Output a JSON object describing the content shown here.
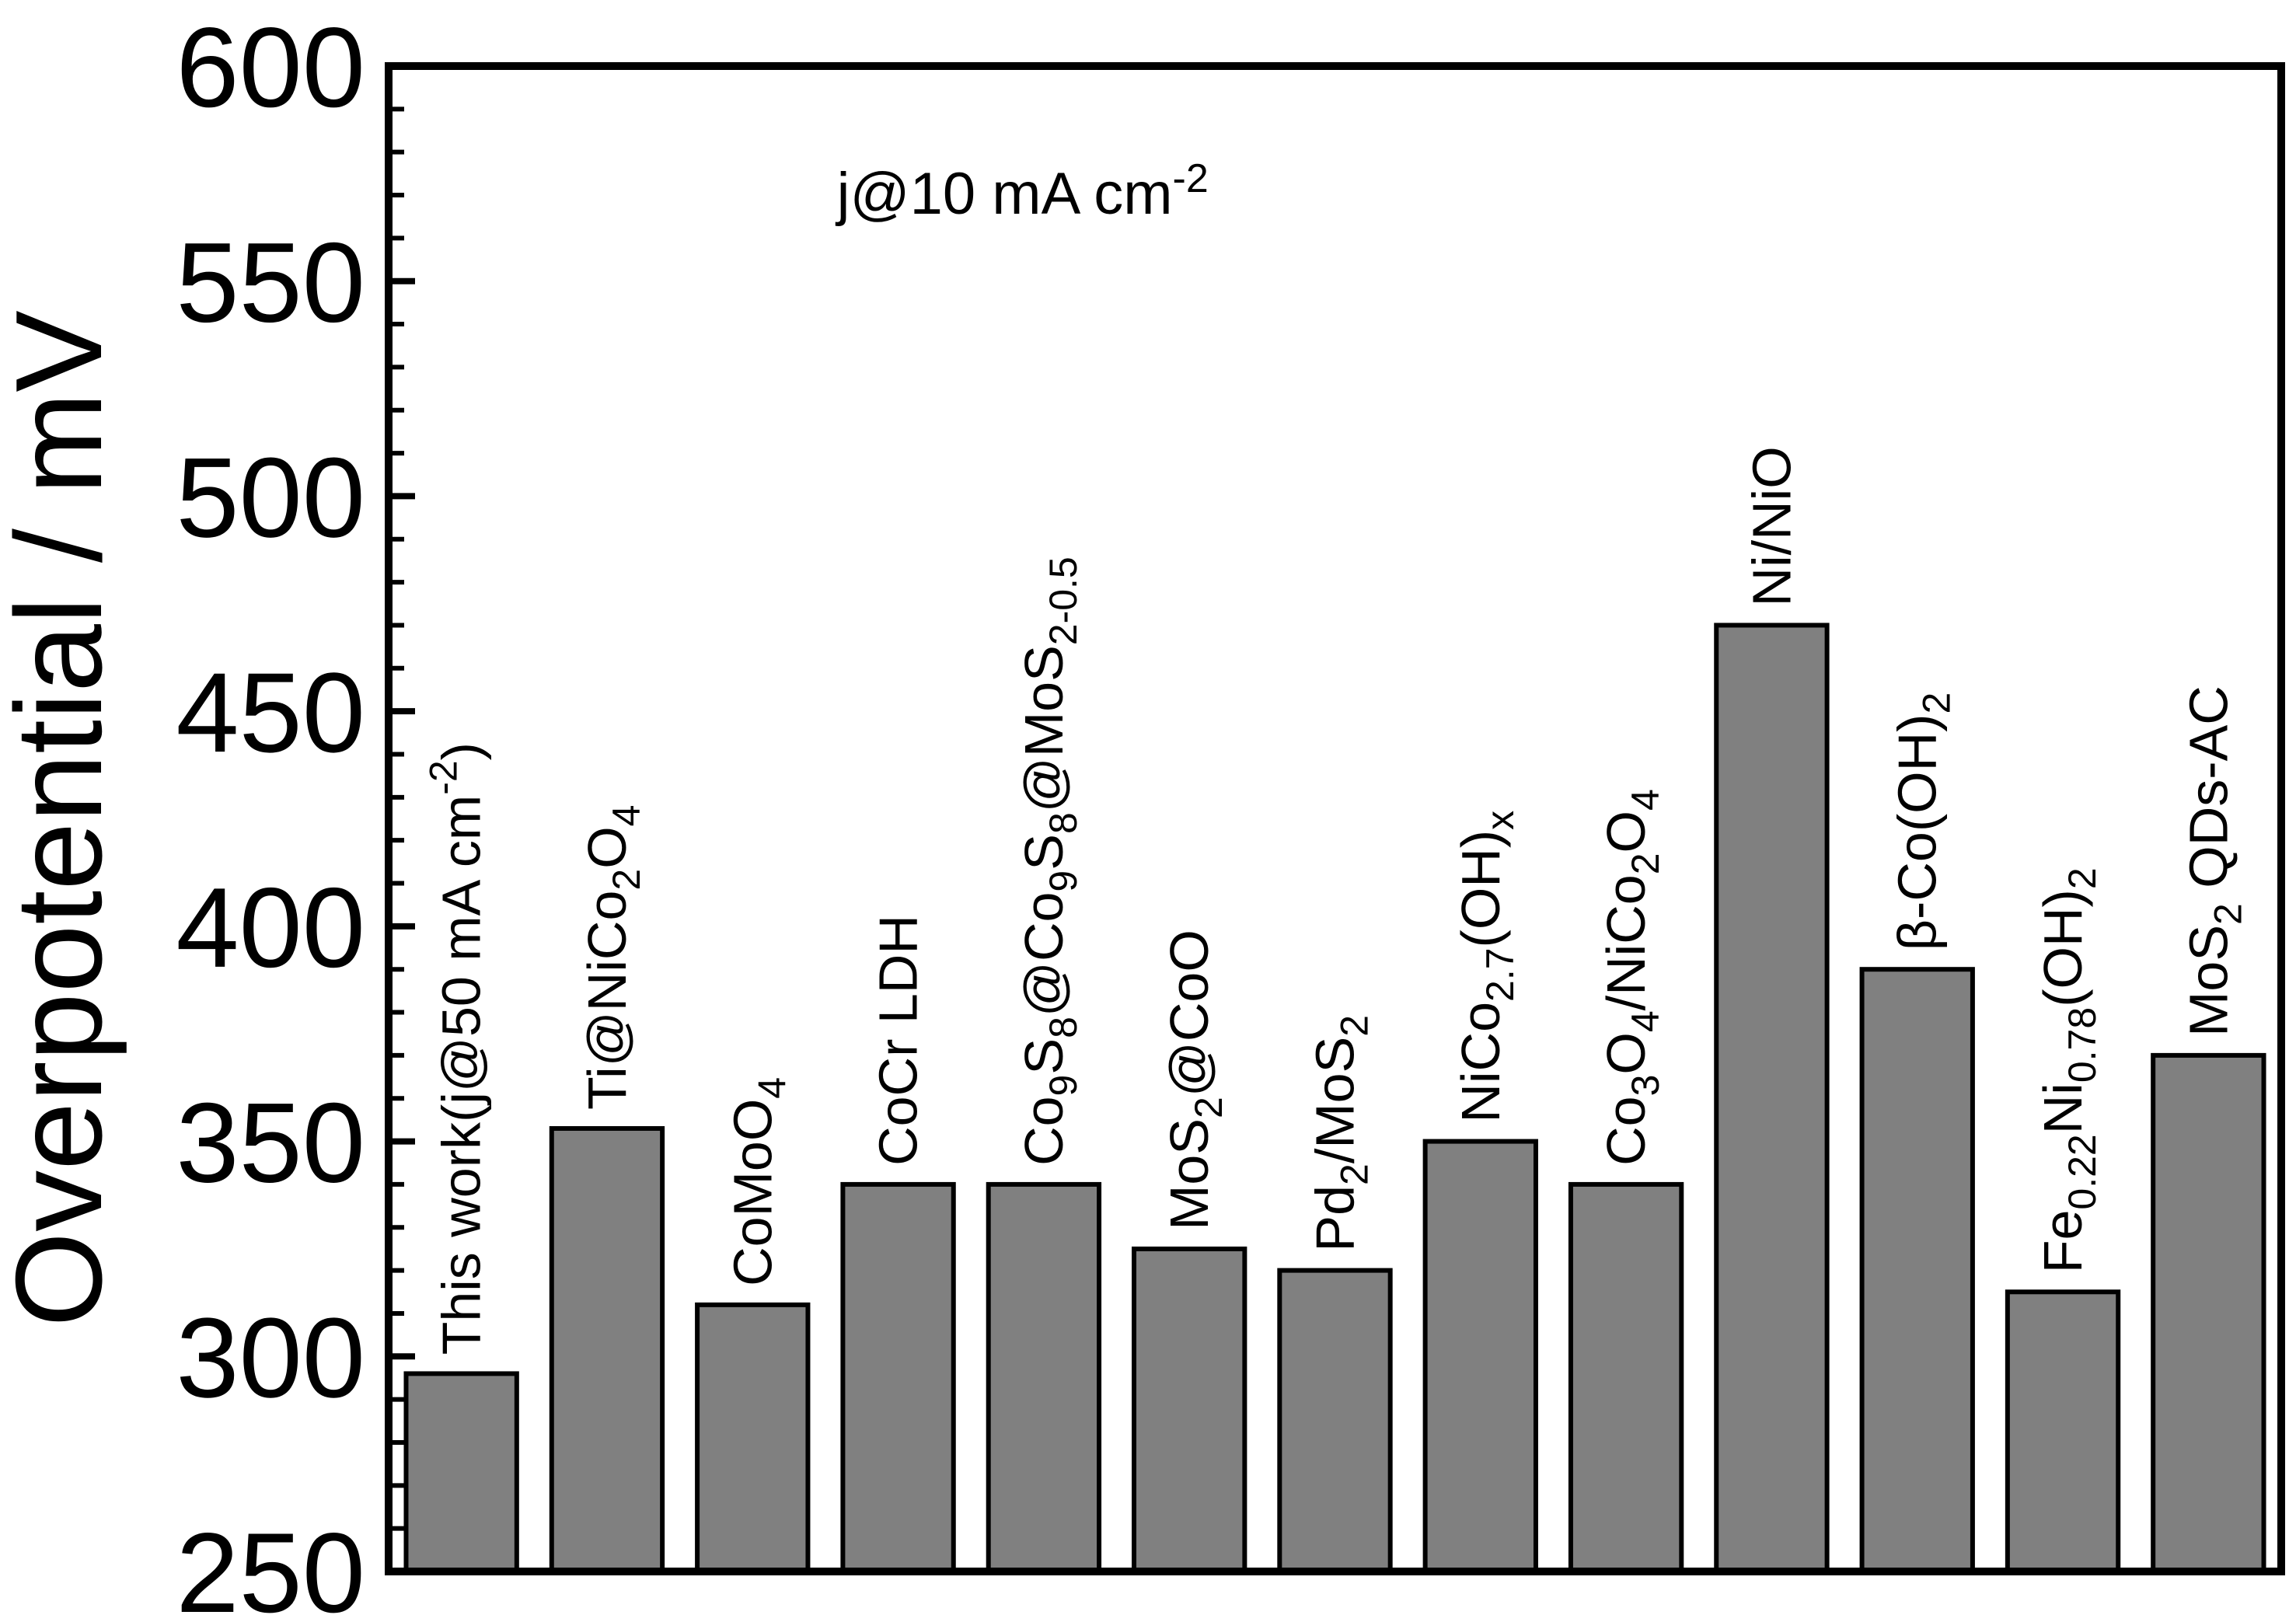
{
  "chart_data": {
    "type": "bar",
    "title": "",
    "annotation": "j@10 mA cm",
    "annotation_sup": "-2",
    "xlabel": "",
    "ylabel": "Overpotential / mV",
    "ylim": [
      250,
      600
    ],
    "yticks": [
      "250",
      "300",
      "350",
      "400",
      "450",
      "500",
      "550",
      "600"
    ],
    "grid": false,
    "highlight_color": "#ff0000",
    "bar_color": "#808080",
    "categories": [
      {
        "id": "this-work",
        "parts": [
          [
            "This work(j@50 mA cm",
            ""
          ],
          [
            "-2",
            "sup"
          ],
          [
            ")",
            ""
          ]
        ],
        "highlight": true
      },
      {
        "id": "ti-nico2o4",
        "parts": [
          [
            "Ti@NiCo",
            ""
          ],
          [
            "2",
            "sub"
          ],
          [
            "O",
            ""
          ],
          [
            "4",
            "sub"
          ]
        ]
      },
      {
        "id": "comoo4",
        "parts": [
          [
            "CoMoO",
            ""
          ],
          [
            "4",
            "sub"
          ]
        ]
      },
      {
        "id": "cocr-ldh",
        "parts": [
          [
            "CoCr LDH",
            ""
          ]
        ]
      },
      {
        "id": "co9s8-mos2",
        "parts": [
          [
            "Co",
            ""
          ],
          [
            "9",
            "sub"
          ],
          [
            "S",
            ""
          ],
          [
            "8",
            "sub"
          ],
          [
            "@Co",
            ""
          ],
          [
            "9",
            "sub"
          ],
          [
            "S",
            ""
          ],
          [
            "8",
            "sub"
          ],
          [
            "@MoS",
            ""
          ],
          [
            "2-0.5",
            "sub"
          ]
        ]
      },
      {
        "id": "mos2-coo",
        "parts": [
          [
            "MoS",
            ""
          ],
          [
            "2",
            "sub"
          ],
          [
            "@CoO",
            ""
          ]
        ]
      },
      {
        "id": "pd2-mos2",
        "parts": [
          [
            "Pd",
            ""
          ],
          [
            "2",
            "sub"
          ],
          [
            "/MoS",
            ""
          ],
          [
            "2",
            "sub"
          ]
        ]
      },
      {
        "id": "nico-oh",
        "parts": [
          [
            "NiCo",
            ""
          ],
          [
            "2.7",
            "sub"
          ],
          [
            "(OH)",
            ""
          ],
          [
            "x",
            "sub"
          ]
        ]
      },
      {
        "id": "co3o4-nico2o4",
        "parts": [
          [
            "Co",
            ""
          ],
          [
            "3",
            "sub"
          ],
          [
            "O",
            ""
          ],
          [
            "4",
            "sub"
          ],
          [
            "/NiCo",
            ""
          ],
          [
            "2",
            "sub"
          ],
          [
            "O",
            ""
          ],
          [
            "4",
            "sub"
          ]
        ]
      },
      {
        "id": "ni-nio",
        "parts": [
          [
            "Ni/NiO",
            ""
          ]
        ]
      },
      {
        "id": "beta-co-oh",
        "parts": [
          [
            "β-Co(OH)",
            ""
          ],
          [
            "2",
            "sub"
          ]
        ]
      },
      {
        "id": "feni-oh",
        "parts": [
          [
            "Fe",
            ""
          ],
          [
            "0.22",
            "sub"
          ],
          [
            "Ni",
            ""
          ],
          [
            "0.78",
            "sub"
          ],
          [
            "(OH)",
            ""
          ],
          [
            "2",
            "sub"
          ]
        ]
      },
      {
        "id": "mos2-qds-ac",
        "parts": [
          [
            "MoS",
            ""
          ],
          [
            "2",
            "sub"
          ],
          [
            " QDs-AC",
            ""
          ]
        ]
      }
    ],
    "values": [
      296,
      353,
      312,
      340,
      340,
      325,
      320,
      350,
      340,
      470,
      390,
      315,
      370
    ]
  }
}
